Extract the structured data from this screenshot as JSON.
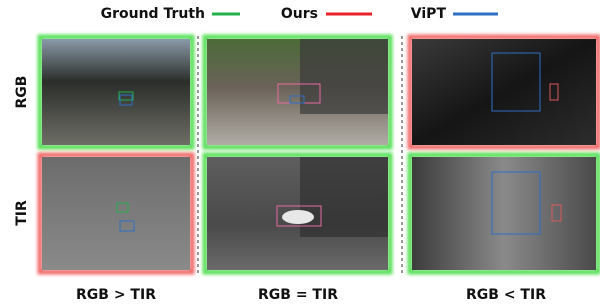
{
  "legend": [
    {
      "label": "Ground Truth",
      "color": "#22b04b"
    },
    {
      "label": "Ours",
      "color": "#e8212a"
    },
    {
      "label": "ViPT",
      "color": "#2f6fc4"
    }
  ],
  "row_labels": [
    "RGB",
    "TIR"
  ],
  "column_labels": [
    "RGB > TIR",
    "RGB = TIR",
    "RGB < TIR"
  ]
}
